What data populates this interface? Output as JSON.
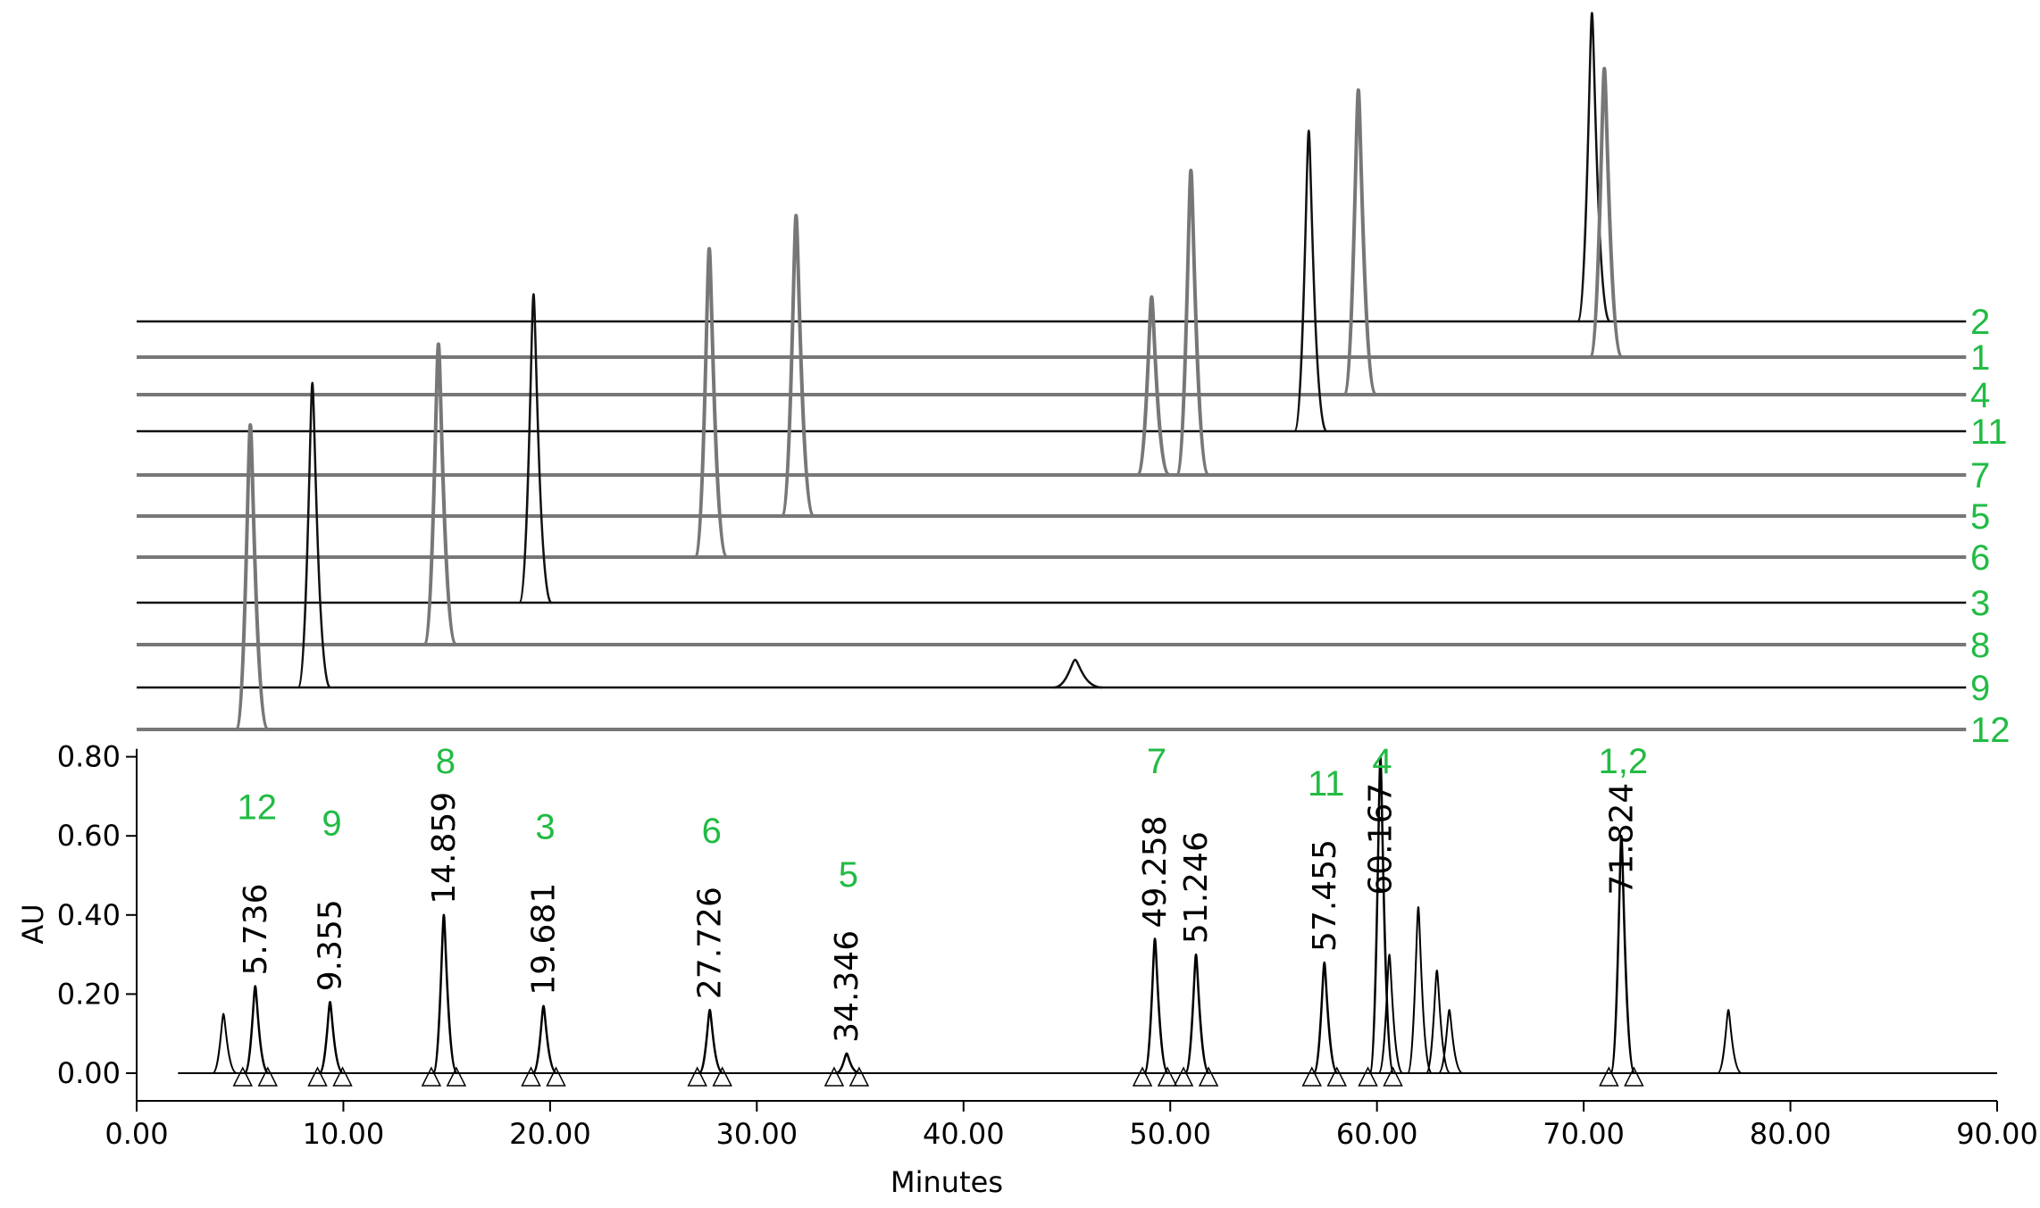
{
  "chart_data": {
    "type": "chromatogram",
    "xlabel": "Minutes",
    "ylabel": "AU",
    "xlim": [
      0,
      90
    ],
    "xticks": [
      {
        "value": 0,
        "label": "0.00"
      },
      {
        "value": 10,
        "label": "10.00"
      },
      {
        "value": 20,
        "label": "20.00"
      },
      {
        "value": 30,
        "label": "30.00"
      },
      {
        "value": 40,
        "label": "40.00"
      },
      {
        "value": 50,
        "label": "50.00"
      },
      {
        "value": 60,
        "label": "60.00"
      },
      {
        "value": 70,
        "label": "70.00"
      },
      {
        "value": 80,
        "label": "80.00"
      },
      {
        "value": 90,
        "label": "90.00"
      }
    ],
    "ylim": [
      -0.07,
      0.82
    ],
    "yticks": [
      {
        "value": 0,
        "label": "0.00"
      },
      {
        "value": 0.2,
        "label": "0.20"
      },
      {
        "value": 0.4,
        "label": "0.40"
      },
      {
        "value": 0.6,
        "label": "0.60"
      },
      {
        "value": 0.8,
        "label": "0.80"
      }
    ],
    "color": "#000000",
    "label_color": "#22bb44",
    "peaks": [
      {
        "rt": 5.736,
        "height": 0.22,
        "compound": "12"
      },
      {
        "rt": 9.355,
        "height": 0.18,
        "compound": "9"
      },
      {
        "rt": 14.859,
        "height": 0.4,
        "compound": "8"
      },
      {
        "rt": 19.681,
        "height": 0.17,
        "compound": "3"
      },
      {
        "rt": 27.726,
        "height": 0.16,
        "compound": "6"
      },
      {
        "rt": 34.346,
        "height": 0.05,
        "compound": "5"
      },
      {
        "rt": 49.258,
        "height": 0.34,
        "compound": "7"
      },
      {
        "rt": 51.246,
        "height": 0.3,
        "compound": null
      },
      {
        "rt": 57.455,
        "height": 0.28,
        "compound": "11"
      },
      {
        "rt": 60.167,
        "height": 0.8,
        "compound": "4"
      },
      {
        "rt": 71.824,
        "height": 0.6,
        "compound": "1,2"
      }
    ],
    "minor_peaks": {
      "x": [
        4.2,
        60.6,
        62.0,
        62.9,
        63.5,
        77.0
      ],
      "values": [
        0.15,
        0.3,
        0.42,
        0.26,
        0.16,
        0.16
      ]
    },
    "traces": [
      {
        "name": "2",
        "color": "#111111",
        "x": [
          70.4
        ],
        "values": [
          0.78
        ]
      },
      {
        "name": "1",
        "color": "#777777",
        "x": [
          71.0
        ],
        "values": [
          0.73
        ]
      },
      {
        "name": "4",
        "color": "#777777",
        "x": [
          59.1
        ],
        "values": [
          0.77
        ]
      },
      {
        "name": "11",
        "color": "#111111",
        "x": [
          56.7
        ],
        "values": [
          0.76
        ]
      },
      {
        "name": "7",
        "color": "#777777",
        "x": [
          49.1,
          51.0
        ],
        "values": [
          0.45,
          0.77
        ]
      },
      {
        "name": "5",
        "color": "#777777",
        "x": [
          31.9
        ],
        "values": [
          0.76
        ]
      },
      {
        "name": "6",
        "color": "#777777",
        "x": [
          27.7
        ],
        "values": [
          0.78
        ]
      },
      {
        "name": "3",
        "color": "#111111",
        "x": [
          19.2
        ],
        "values": [
          0.78
        ]
      },
      {
        "name": "8",
        "color": "#777777",
        "x": [
          14.6
        ],
        "values": [
          0.76
        ]
      },
      {
        "name": "9",
        "color": "#111111",
        "x": [
          8.5,
          45.4
        ],
        "values": [
          0.77,
          0.07
        ]
      },
      {
        "name": "12",
        "color": "#777777",
        "x": [
          5.5
        ],
        "values": [
          0.77
        ]
      }
    ]
  }
}
